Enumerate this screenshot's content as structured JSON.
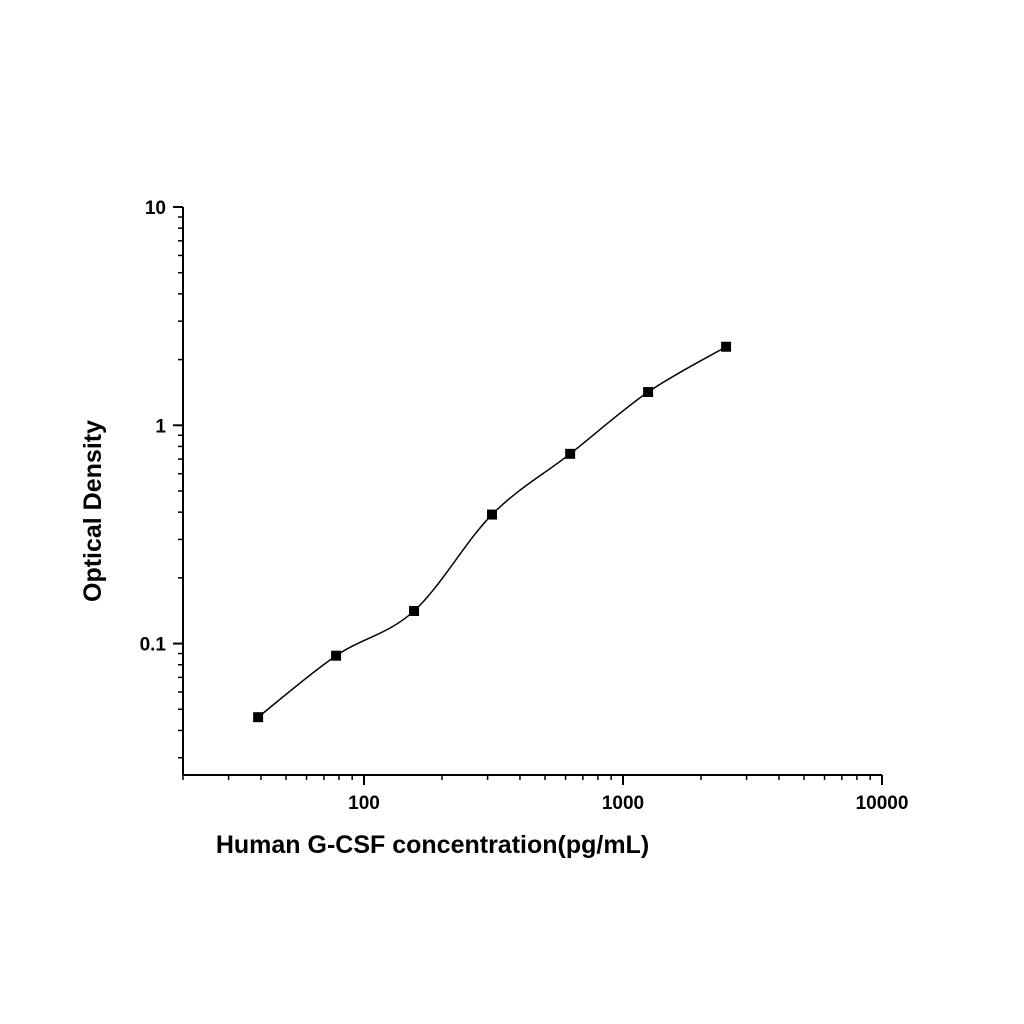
{
  "chart_data": {
    "type": "scatter",
    "xlabel": "Human G-CSF concentration(pg/mL)",
    "ylabel": "Optical Density",
    "x_scale": "log",
    "y_scale": "log",
    "xlim": [
      20,
      10000
    ],
    "ylim": [
      0.025,
      10
    ],
    "x_ticks": [
      {
        "value": 100,
        "label": "100"
      },
      {
        "value": 1000,
        "label": "1000"
      },
      {
        "value": 10000,
        "label": "10000"
      }
    ],
    "y_ticks": [
      {
        "value": 0.1,
        "label": "0.1"
      },
      {
        "value": 1,
        "label": "1"
      },
      {
        "value": 10,
        "label": "10"
      }
    ],
    "grid": false,
    "series": [
      {
        "x": [
          39,
          78,
          156,
          312,
          625,
          1250,
          2500
        ],
        "y": [
          0.046,
          0.088,
          0.141,
          0.39,
          0.74,
          1.42,
          2.29
        ],
        "marker": "square",
        "color": "#000000",
        "fit_line": true
      }
    ]
  }
}
